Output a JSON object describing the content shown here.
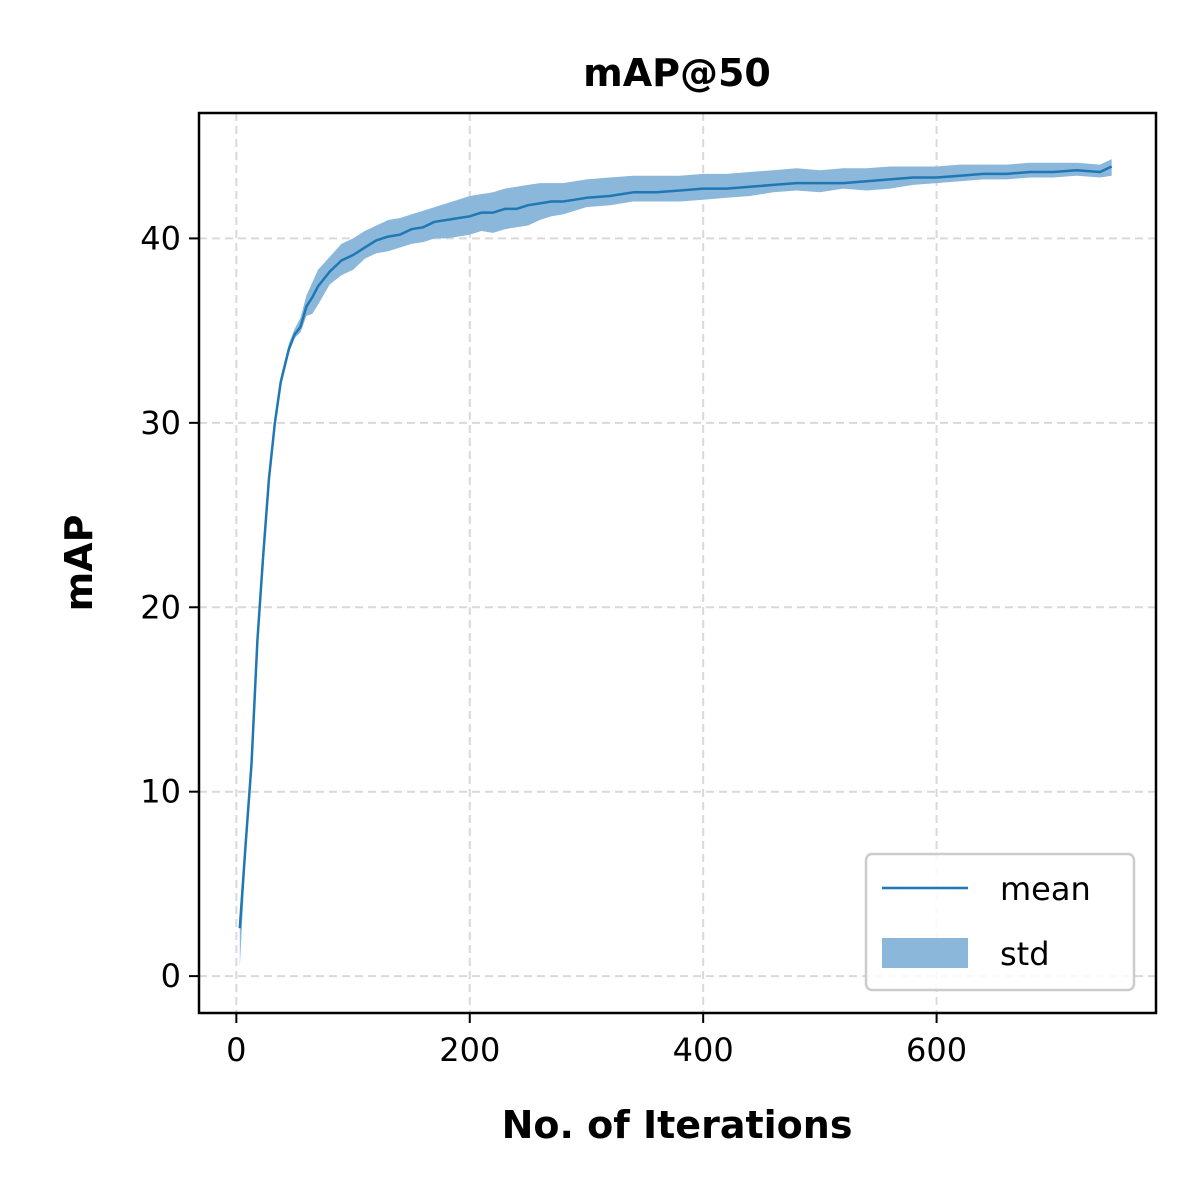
{
  "chart_data": {
    "type": "line",
    "title": "mAP@50",
    "xlabel": "No. of Iterations",
    "ylabel": "mAP",
    "xlim": [
      -32,
      788
    ],
    "ylim": [
      -2,
      46.8
    ],
    "xticks": [
      0,
      200,
      400,
      600
    ],
    "yticks": [
      0,
      10,
      20,
      30,
      40
    ],
    "grid": true,
    "legend_position": "lower-right",
    "colors": {
      "line": "#1f77b4",
      "band": "#8ab7da"
    },
    "series": [
      {
        "name": "mean",
        "kind": "line",
        "x": [
          3,
          8,
          13,
          18,
          23,
          28,
          33,
          38,
          45,
          50,
          55,
          60,
          65,
          70,
          80,
          90,
          100,
          110,
          120,
          130,
          140,
          150,
          160,
          170,
          180,
          190,
          200,
          210,
          220,
          230,
          240,
          250,
          260,
          270,
          280,
          290,
          300,
          320,
          340,
          360,
          380,
          400,
          420,
          440,
          460,
          480,
          500,
          520,
          540,
          560,
          580,
          600,
          620,
          640,
          660,
          680,
          700,
          720,
          740,
          750
        ],
        "y": [
          2.6,
          7.2,
          11.5,
          18.2,
          22.8,
          27.0,
          30.0,
          32.2,
          34.0,
          34.8,
          35.2,
          36.3,
          36.8,
          37.4,
          38.2,
          38.8,
          39.1,
          39.5,
          39.9,
          40.1,
          40.2,
          40.5,
          40.6,
          40.9,
          41.0,
          41.1,
          41.2,
          41.4,
          41.4,
          41.6,
          41.6,
          41.8,
          41.9,
          42.0,
          42.0,
          42.1,
          42.2,
          42.3,
          42.5,
          42.5,
          42.6,
          42.7,
          42.7,
          42.8,
          42.9,
          43.0,
          43.0,
          43.0,
          43.1,
          43.2,
          43.3,
          43.3,
          43.4,
          43.5,
          43.5,
          43.6,
          43.6,
          43.7,
          43.6,
          43.9
        ]
      },
      {
        "name": "std",
        "kind": "band",
        "x": [
          3,
          8,
          13,
          18,
          23,
          28,
          33,
          38,
          45,
          50,
          55,
          60,
          65,
          70,
          80,
          90,
          100,
          110,
          120,
          130,
          140,
          150,
          160,
          170,
          180,
          190,
          200,
          210,
          220,
          230,
          240,
          250,
          260,
          270,
          280,
          290,
          300,
          320,
          340,
          360,
          380,
          400,
          420,
          440,
          460,
          480,
          500,
          520,
          540,
          560,
          580,
          600,
          620,
          640,
          660,
          680,
          700,
          720,
          740,
          750
        ],
        "low": [
          0.5,
          6.6,
          11.0,
          17.8,
          22.5,
          26.8,
          29.8,
          32.0,
          33.8,
          34.6,
          34.9,
          35.8,
          35.9,
          36.4,
          37.5,
          38.0,
          38.3,
          38.9,
          39.2,
          39.3,
          39.5,
          39.7,
          39.8,
          40.0,
          40.0,
          40.1,
          40.2,
          40.4,
          40.3,
          40.5,
          40.6,
          40.7,
          41.0,
          41.2,
          41.3,
          41.5,
          41.7,
          41.8,
          42.0,
          42.0,
          42.0,
          42.1,
          42.2,
          42.3,
          42.5,
          42.6,
          42.5,
          42.7,
          42.6,
          42.7,
          42.9,
          43.0,
          43.1,
          43.2,
          43.2,
          43.3,
          43.3,
          43.4,
          43.3,
          43.4
        ],
        "high": [
          3.0,
          7.6,
          11.9,
          18.6,
          23.2,
          27.3,
          30.3,
          32.5,
          34.3,
          35.1,
          35.7,
          36.9,
          37.6,
          38.3,
          39.0,
          39.7,
          40.0,
          40.4,
          40.7,
          41.0,
          41.1,
          41.3,
          41.5,
          41.7,
          41.9,
          42.1,
          42.3,
          42.4,
          42.5,
          42.7,
          42.8,
          42.9,
          43.0,
          43.0,
          43.0,
          43.1,
          43.2,
          43.3,
          43.4,
          43.4,
          43.4,
          43.5,
          43.5,
          43.6,
          43.7,
          43.8,
          43.7,
          43.8,
          43.8,
          43.9,
          43.9,
          43.9,
          44.0,
          44.0,
          44.0,
          44.1,
          44.1,
          44.1,
          44.0,
          44.3
        ]
      }
    ]
  }
}
